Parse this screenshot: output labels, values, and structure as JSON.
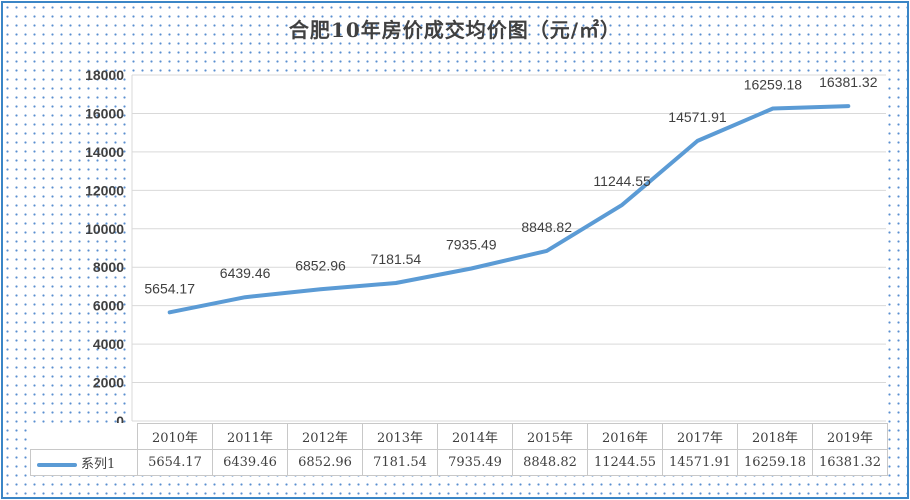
{
  "chart_data": {
    "type": "line",
    "title": "合肥10年房价成交均价图（元/㎡）",
    "categories": [
      "2010年",
      "2011年",
      "2012年",
      "2013年",
      "2014年",
      "2015年",
      "2016年",
      "2017年",
      "2018年",
      "2019年"
    ],
    "series": [
      {
        "name": "系列1",
        "values": [
          5654.17,
          6439.46,
          6852.96,
          7181.54,
          7935.49,
          8848.82,
          11244.55,
          14571.91,
          16259.18,
          16381.32
        ],
        "labels": [
          "5654.17",
          "6439.46",
          "6852.96",
          "7181.54",
          "7935.49",
          "8848.82",
          "11244.55",
          "14571.91",
          "16259.18",
          "16381.32"
        ]
      }
    ],
    "yticks": [
      "0",
      "2000",
      "4000",
      "6000",
      "8000",
      "10000",
      "12000",
      "14000",
      "16000",
      "18000"
    ],
    "ylim": [
      0,
      18000
    ],
    "grid": true,
    "legend": "data-table",
    "colors": {
      "line": "#5b9bd5",
      "grid": "#d9d9d9",
      "border": "#3b86c6",
      "dots": "#5b8fd0"
    }
  }
}
